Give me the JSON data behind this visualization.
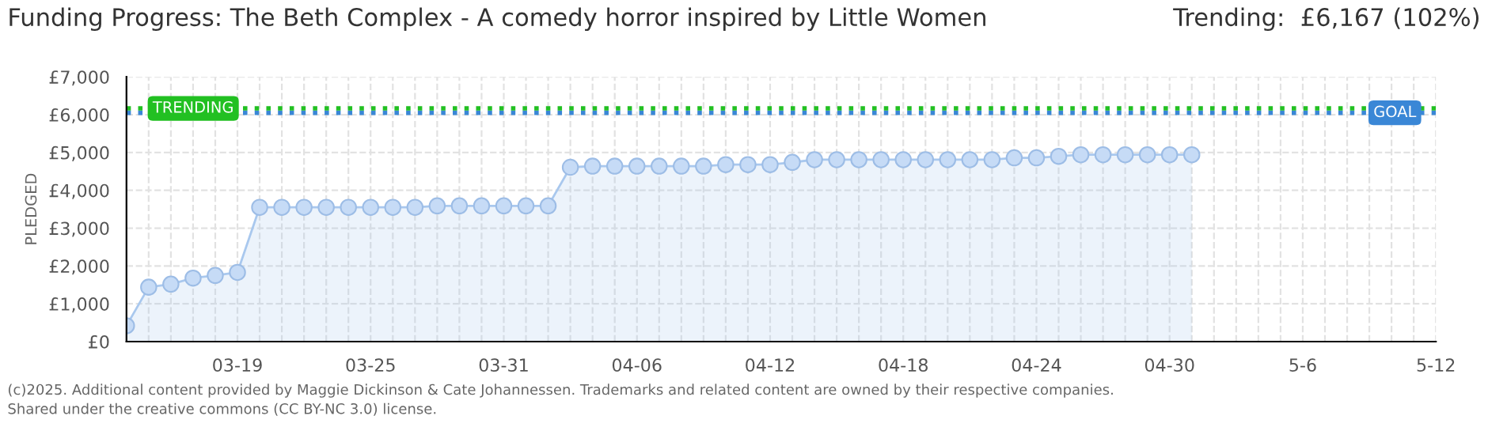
{
  "chart_data": {
    "type": "area",
    "title": "Funding Progress: The Beth Complex - A comedy horror inspired by Little Women",
    "subtitle": "Trending:  £6,167 (102%)",
    "ylabel": "PLEDGED",
    "x": [
      "2025-03-14",
      "2025-03-15",
      "2025-03-16",
      "2025-03-17",
      "2025-03-18",
      "2025-03-19",
      "2025-03-20",
      "2025-03-21",
      "2025-03-22",
      "2025-03-23",
      "2025-03-24",
      "2025-03-25",
      "2025-03-26",
      "2025-03-27",
      "2025-03-28",
      "2025-03-29",
      "2025-03-30",
      "2025-03-31",
      "2025-04-01",
      "2025-04-02",
      "2025-04-03",
      "2025-04-04",
      "2025-04-05",
      "2025-04-06",
      "2025-04-07",
      "2025-04-08",
      "2025-04-09",
      "2025-04-10",
      "2025-04-11",
      "2025-04-12",
      "2025-04-13",
      "2025-04-14",
      "2025-04-15",
      "2025-04-16",
      "2025-04-17",
      "2025-04-18",
      "2025-04-19",
      "2025-04-20",
      "2025-04-21",
      "2025-04-22",
      "2025-04-23",
      "2025-04-24",
      "2025-04-25",
      "2025-04-26",
      "2025-04-27",
      "2025-04-28",
      "2025-04-29",
      "2025-04-30",
      "2025-05-01"
    ],
    "series": [
      {
        "color": "#a9c8ee",
        "values": [
          420,
          1440,
          1520,
          1680,
          1750,
          1830,
          3550,
          3550,
          3550,
          3550,
          3550,
          3550,
          3550,
          3550,
          3590,
          3590,
          3590,
          3590,
          3590,
          3590,
          4610,
          4640,
          4640,
          4640,
          4640,
          4640,
          4640,
          4680,
          4680,
          4680,
          4740,
          4810,
          4810,
          4810,
          4810,
          4810,
          4810,
          4810,
          4810,
          4810,
          4860,
          4860,
          4900,
          4940,
          4940,
          4940,
          4940,
          4940,
          4940
        ]
      }
    ],
    "marker": "circle",
    "xlim": [
      "2025-03-14",
      "2025-05-12"
    ],
    "xticks": [
      {
        "value": "2025-03-19",
        "label": "03-19"
      },
      {
        "value": "2025-03-25",
        "label": "03-25"
      },
      {
        "value": "2025-03-31",
        "label": "03-31"
      },
      {
        "value": "2025-04-06",
        "label": "04-06"
      },
      {
        "value": "2025-04-12",
        "label": "04-12"
      },
      {
        "value": "2025-04-18",
        "label": "04-18"
      },
      {
        "value": "2025-04-24",
        "label": "04-24"
      },
      {
        "value": "2025-04-30",
        "label": "04-30"
      },
      {
        "value": "2025-05-06",
        "label": "5-6"
      },
      {
        "value": "2025-05-12",
        "label": "5-12"
      }
    ],
    "ylim": [
      0,
      7000
    ],
    "yticks": [
      {
        "value": 0,
        "label": "£0"
      },
      {
        "value": 1000,
        "label": "£1,000"
      },
      {
        "value": 2000,
        "label": "£2,000"
      },
      {
        "value": 3000,
        "label": "£3,000"
      },
      {
        "value": 4000,
        "label": "£4,000"
      },
      {
        "value": 5000,
        "label": "£5,000"
      },
      {
        "value": 6000,
        "label": "£6,000"
      },
      {
        "value": 7000,
        "label": "£7,000"
      }
    ],
    "grid": true,
    "ref_lines": [
      {
        "axis": "y",
        "value": 6050,
        "label": "GOAL",
        "color": "#3a87d6",
        "line_style": "dotted"
      },
      {
        "axis": "y",
        "value": 6167,
        "label": "TRENDING",
        "color": "#22c022",
        "line_style": "dotted"
      }
    ],
    "annotations": [
      "(c)2025. Additional content provided by Maggie Dickinson & Cate Johannessen. Trademarks and related content are owned by their respective companies.",
      "Shared under the creative commons (CC BY-NC 3.0) license."
    ]
  }
}
